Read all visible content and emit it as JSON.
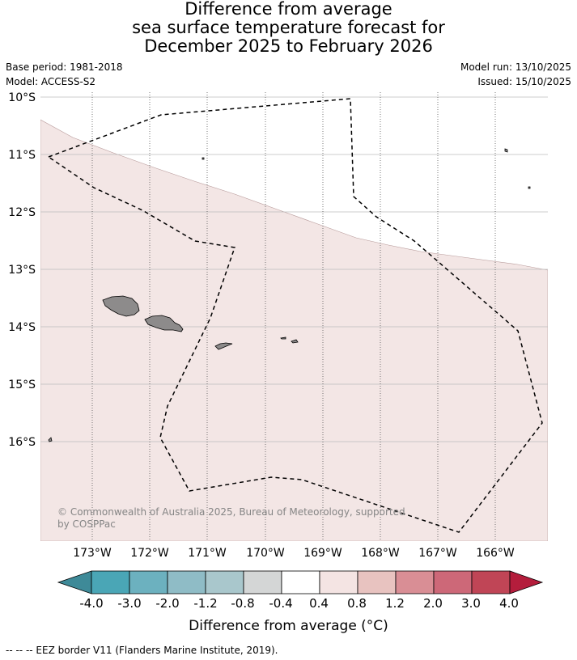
{
  "title": {
    "line1": "Difference from average",
    "line2": "sea surface temperature forecast for",
    "line3": "December 2025 to February 2026"
  },
  "meta": {
    "base_period": "Base period: 1981-2018",
    "model": "Model: ACCESS-S2",
    "model_run": "Model run: 13/10/2025",
    "issued": "Issued: 15/10/2025"
  },
  "map": {
    "latitude_labels": [
      "10°S",
      "11°S",
      "12°S",
      "13°S",
      "14°S",
      "15°S",
      "16°S"
    ],
    "longitude_labels": [
      "173°W",
      "172°W",
      "171°W",
      "170°W",
      "169°W",
      "168°W",
      "167°W",
      "166°W"
    ],
    "ocean_anomaly_band": "0.4 to 0.8",
    "band_color": "#f3e6e5",
    "land_color": "#8d8b8b",
    "eez_line_style": "dashed"
  },
  "credit": {
    "line1": "© Commonwealth of Australia 2025, Bureau of Meteorology, supported",
    "line2": "by COSPPac"
  },
  "colorbar": {
    "tick_labels": [
      "-4.0",
      "-3.0",
      "-2.0",
      "-1.2",
      "-0.8",
      "-0.4",
      "0.4",
      "0.8",
      "1.2",
      "2.0",
      "3.0",
      "4.0"
    ],
    "colors": [
      "#3e8a98",
      "#4aa6b6",
      "#6cb1bf",
      "#8fbcc6",
      "#a9c7cc",
      "#d4d6d6",
      "#ffffff",
      "#f4e4e3",
      "#e8c3c0",
      "#d98e95",
      "#cd6878",
      "#c04556",
      "#b41d3c"
    ],
    "title": "Difference from average (°C)"
  },
  "footnote": "-- -- -- EEZ border V11 (Flanders Marine Institute, 2019)."
}
